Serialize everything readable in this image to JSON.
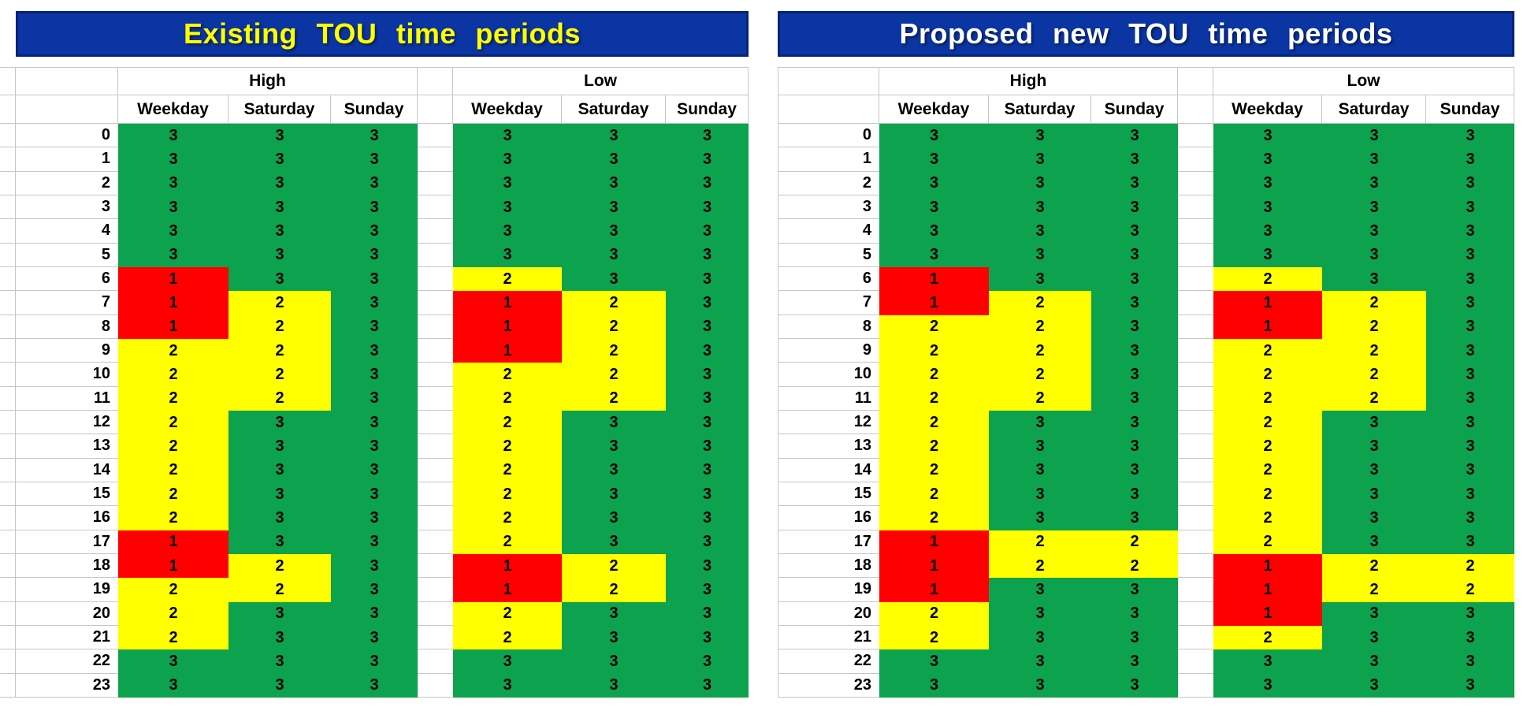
{
  "figure_background": "#FFFFFF",
  "header_bar_color": "#0B35A3",
  "header_bar_border_color": "#07227B",
  "gridline_color": "#C6C6C6",
  "period_colors": {
    "1": "#FE0000",
    "2": "#FFFF00",
    "3": "#0DA24D"
  },
  "tables": [
    {
      "id": "existing",
      "title": "Existing TOU time periods",
      "title_color": "#FFFF00",
      "groups": [
        "High",
        "Low"
      ],
      "day_columns": [
        "Weekday",
        "Saturday",
        "Sunday"
      ],
      "hours": [
        0,
        1,
        2,
        3,
        4,
        5,
        6,
        7,
        8,
        9,
        10,
        11,
        12,
        13,
        14,
        15,
        16,
        17,
        18,
        19,
        20,
        21,
        22,
        23
      ],
      "high": {
        "weekday": [
          3,
          3,
          3,
          3,
          3,
          3,
          1,
          1,
          1,
          2,
          2,
          2,
          2,
          2,
          2,
          2,
          2,
          1,
          1,
          2,
          2,
          2,
          3,
          3
        ],
        "saturday": [
          3,
          3,
          3,
          3,
          3,
          3,
          3,
          2,
          2,
          2,
          2,
          2,
          3,
          3,
          3,
          3,
          3,
          3,
          2,
          2,
          3,
          3,
          3,
          3
        ],
        "sunday": [
          3,
          3,
          3,
          3,
          3,
          3,
          3,
          3,
          3,
          3,
          3,
          3,
          3,
          3,
          3,
          3,
          3,
          3,
          3,
          3,
          3,
          3,
          3,
          3
        ]
      },
      "low": {
        "weekday": [
          3,
          3,
          3,
          3,
          3,
          3,
          2,
          1,
          1,
          1,
          2,
          2,
          2,
          2,
          2,
          2,
          2,
          2,
          1,
          1,
          2,
          2,
          3,
          3
        ],
        "saturday": [
          3,
          3,
          3,
          3,
          3,
          3,
          3,
          2,
          2,
          2,
          2,
          2,
          3,
          3,
          3,
          3,
          3,
          3,
          2,
          2,
          3,
          3,
          3,
          3
        ],
        "sunday": [
          3,
          3,
          3,
          3,
          3,
          3,
          3,
          3,
          3,
          3,
          3,
          3,
          3,
          3,
          3,
          3,
          3,
          3,
          3,
          3,
          3,
          3,
          3,
          3
        ]
      }
    },
    {
      "id": "proposed",
      "title": "Proposed new TOU time periods",
      "title_color": "#FFFFFF",
      "groups": [
        "High",
        "Low"
      ],
      "day_columns": [
        "Weekday",
        "Saturday",
        "Sunday"
      ],
      "hours": [
        0,
        1,
        2,
        3,
        4,
        5,
        6,
        7,
        8,
        9,
        10,
        11,
        12,
        13,
        14,
        15,
        16,
        17,
        18,
        19,
        20,
        21,
        22,
        23
      ],
      "high": {
        "weekday": [
          3,
          3,
          3,
          3,
          3,
          3,
          1,
          1,
          2,
          2,
          2,
          2,
          2,
          2,
          2,
          2,
          2,
          1,
          1,
          1,
          2,
          2,
          3,
          3
        ],
        "saturday": [
          3,
          3,
          3,
          3,
          3,
          3,
          3,
          2,
          2,
          2,
          2,
          2,
          3,
          3,
          3,
          3,
          3,
          2,
          2,
          3,
          3,
          3,
          3,
          3
        ],
        "sunday": [
          3,
          3,
          3,
          3,
          3,
          3,
          3,
          3,
          3,
          3,
          3,
          3,
          3,
          3,
          3,
          3,
          3,
          2,
          2,
          3,
          3,
          3,
          3,
          3
        ]
      },
      "low": {
        "weekday": [
          3,
          3,
          3,
          3,
          3,
          3,
          2,
          1,
          1,
          2,
          2,
          2,
          2,
          2,
          2,
          2,
          2,
          2,
          1,
          1,
          1,
          2,
          3,
          3
        ],
        "saturday": [
          3,
          3,
          3,
          3,
          3,
          3,
          3,
          2,
          2,
          2,
          2,
          2,
          3,
          3,
          3,
          3,
          3,
          3,
          2,
          2,
          3,
          3,
          3,
          3
        ],
        "sunday": [
          3,
          3,
          3,
          3,
          3,
          3,
          3,
          3,
          3,
          3,
          3,
          3,
          3,
          3,
          3,
          3,
          3,
          3,
          2,
          2,
          3,
          3,
          3,
          3
        ]
      }
    }
  ],
  "chart_data": [
    {
      "type": "heatmap",
      "title": "Existing TOU time periods",
      "x_categories": [
        "High Weekday",
        "High Saturday",
        "High Sunday",
        "Low Weekday",
        "Low Saturday",
        "Low Sunday"
      ],
      "y_categories": [
        0,
        1,
        2,
        3,
        4,
        5,
        6,
        7,
        8,
        9,
        10,
        11,
        12,
        13,
        14,
        15,
        16,
        17,
        18,
        19,
        20,
        21,
        22,
        23
      ],
      "value_colors": {
        "1": "#FE0000",
        "2": "#FFFF00",
        "3": "#0DA24D"
      },
      "columns": {
        "high_weekday": [
          3,
          3,
          3,
          3,
          3,
          3,
          1,
          1,
          1,
          2,
          2,
          2,
          2,
          2,
          2,
          2,
          2,
          1,
          1,
          2,
          2,
          2,
          3,
          3
        ],
        "high_saturday": [
          3,
          3,
          3,
          3,
          3,
          3,
          3,
          2,
          2,
          2,
          2,
          2,
          3,
          3,
          3,
          3,
          3,
          3,
          2,
          2,
          3,
          3,
          3,
          3
        ],
        "high_sunday": [
          3,
          3,
          3,
          3,
          3,
          3,
          3,
          3,
          3,
          3,
          3,
          3,
          3,
          3,
          3,
          3,
          3,
          3,
          3,
          3,
          3,
          3,
          3,
          3
        ],
        "low_weekday": [
          3,
          3,
          3,
          3,
          3,
          3,
          2,
          1,
          1,
          1,
          2,
          2,
          2,
          2,
          2,
          2,
          2,
          2,
          1,
          1,
          2,
          2,
          3,
          3
        ],
        "low_saturday": [
          3,
          3,
          3,
          3,
          3,
          3,
          3,
          2,
          2,
          2,
          2,
          2,
          3,
          3,
          3,
          3,
          3,
          3,
          2,
          2,
          3,
          3,
          3,
          3
        ],
        "low_sunday": [
          3,
          3,
          3,
          3,
          3,
          3,
          3,
          3,
          3,
          3,
          3,
          3,
          3,
          3,
          3,
          3,
          3,
          3,
          3,
          3,
          3,
          3,
          3,
          3
        ]
      }
    },
    {
      "type": "heatmap",
      "title": "Proposed new TOU time periods",
      "x_categories": [
        "High Weekday",
        "High Saturday",
        "High Sunday",
        "Low Weekday",
        "Low Saturday",
        "Low Sunday"
      ],
      "y_categories": [
        0,
        1,
        2,
        3,
        4,
        5,
        6,
        7,
        8,
        9,
        10,
        11,
        12,
        13,
        14,
        15,
        16,
        17,
        18,
        19,
        20,
        21,
        22,
        23
      ],
      "value_colors": {
        "1": "#FE0000",
        "2": "#FFFF00",
        "3": "#0DA24D"
      },
      "columns": {
        "high_weekday": [
          3,
          3,
          3,
          3,
          3,
          3,
          1,
          1,
          2,
          2,
          2,
          2,
          2,
          2,
          2,
          2,
          2,
          1,
          1,
          1,
          2,
          2,
          3,
          3
        ],
        "high_saturday": [
          3,
          3,
          3,
          3,
          3,
          3,
          3,
          2,
          2,
          2,
          2,
          2,
          3,
          3,
          3,
          3,
          3,
          2,
          2,
          3,
          3,
          3,
          3,
          3
        ],
        "high_sunday": [
          3,
          3,
          3,
          3,
          3,
          3,
          3,
          3,
          3,
          3,
          3,
          3,
          3,
          3,
          3,
          3,
          3,
          2,
          2,
          3,
          3,
          3,
          3,
          3
        ],
        "low_weekday": [
          3,
          3,
          3,
          3,
          3,
          3,
          2,
          1,
          1,
          2,
          2,
          2,
          2,
          2,
          2,
          2,
          2,
          2,
          1,
          1,
          1,
          2,
          3,
          3
        ],
        "low_saturday": [
          3,
          3,
          3,
          3,
          3,
          3,
          3,
          2,
          2,
          2,
          2,
          2,
          3,
          3,
          3,
          3,
          3,
          3,
          2,
          2,
          3,
          3,
          3,
          3
        ],
        "low_sunday": [
          3,
          3,
          3,
          3,
          3,
          3,
          3,
          3,
          3,
          3,
          3,
          3,
          3,
          3,
          3,
          3,
          3,
          3,
          2,
          2,
          3,
          3,
          3,
          3
        ]
      }
    }
  ]
}
